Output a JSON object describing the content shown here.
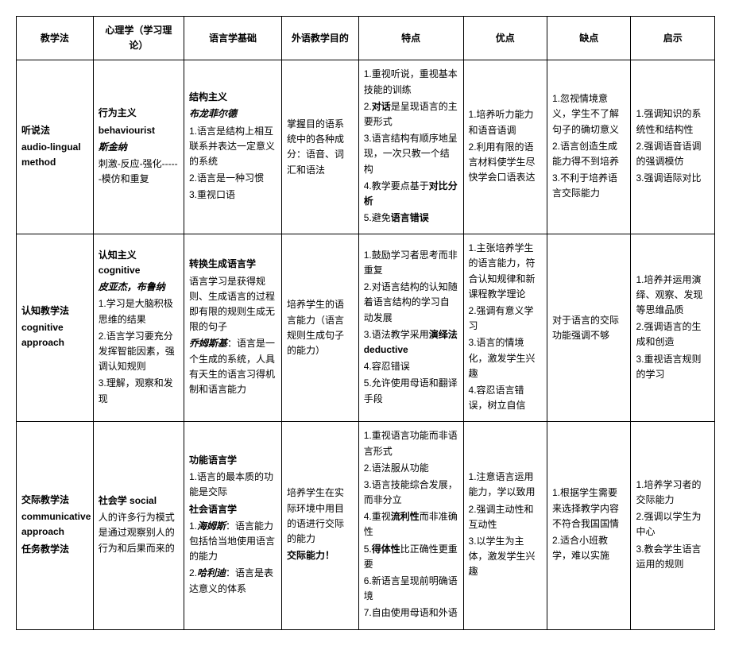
{
  "headers": {
    "c0": "教学法",
    "c1": "心理学（学习理论）",
    "c2": "语言学基础",
    "c3": "外语教学目的",
    "c4": "特点",
    "c5": "优点",
    "c6": "缺点",
    "c7": "启示"
  },
  "rows": [
    {
      "method_cn": "听说法",
      "method_en": "audio-lingual method",
      "psych": {
        "l1": "行为主义",
        "l2": "behaviourist",
        "l3": "斯金纳",
        "l4": "刺激-反应-强化------模仿和重复"
      },
      "ling": {
        "l1": "结构主义",
        "l2": "布龙菲尔德",
        "l3": "1.语言是结构上相互联系并表达一定意义的系统",
        "l4": "2.语言是一种习惯",
        "l5": "3.重视口语"
      },
      "goal": "掌握目的语系统中的各种成分：语音、词汇和语法",
      "feat": {
        "l1": "1.重视听说，重视基本技能的训练",
        "l2a": "2.",
        "l2b": "对话",
        "l2c": "是呈现语言的主要形式",
        "l3": "3.语言结构有顺序地呈现，一次只教一个结构",
        "l4a": "4.教学要点基于",
        "l4b": "对比分析",
        "l5a": "5.避免",
        "l5b": "语言错误"
      },
      "adv": {
        "l1": "1.培养听力能力和语音语调",
        "l2": "2.利用有限的语言材料使学生尽快学会口语表达"
      },
      "dis": {
        "l1": "1.忽视情境意义，学生不了解句子的确切意义",
        "l2": "2.语言创造生成能力得不到培养",
        "l3": "3.不利于培养语言交际能力"
      },
      "ins": {
        "l1": "1.强调知识的系统性和结构性",
        "l2": "2.强调语音语调的强调模仿",
        "l3": "3.强调语际对比"
      }
    },
    {
      "method_cn": "认知教学法",
      "method_en": "cognitive approach",
      "psych": {
        "l1a": "认知主义 cognitive",
        "l2": "皮亚杰，布鲁纳",
        "l3": "1.学习是大脑积极思维的结果",
        "l4": "2.语言学习要充分发挥智能因素，强调认知规则",
        "l5": "3.理解，观察和发现"
      },
      "ling": {
        "l1": "转换生成语言学",
        "l2": "语言学习是获得规则、生成语言的过程即有限的规则生成无限的句子",
        "l3a": "乔姆斯基",
        "l3b": "：语言是一个生成的系统，人具有天生的语言习得机制和语言能力"
      },
      "goal": "培养学生的语言能力（语言规则生成句子的能力）",
      "feat": {
        "l1": "1.鼓励学习者思考而非重复",
        "l2": "2.对语言结构的认知随着语言结构的学习自动发展",
        "l3a": "3.语法教学采用",
        "l3b": "演绎法deductive",
        "l4": "4.容忍错误",
        "l5": "5.允许使用母语和翻译手段"
      },
      "adv": {
        "l1": "1.主张培养学生的语言能力，符合认知规律和新课程教学理论",
        "l2": "2.强调有意义学习",
        "l3": "3.语言的情境化，激发学生兴趣",
        "l4": "4.容忍语言错误，树立自信"
      },
      "dis": "对于语言的交际功能强调不够",
      "ins": {
        "l1": "1.培养并运用演绎、观察、发现等思维品质",
        "l2": "2.强调语言的生成和创造",
        "l3": "3.重视语言规则的学习"
      }
    },
    {
      "method_cn": "交际教学法",
      "method_en1": "communicative approach",
      "method_en2": "任务教学法",
      "psych": {
        "l1": "社会学 social",
        "l2": "人的许多行为模式是通过观察别人的行为和后果而来的"
      },
      "ling": {
        "l1": "功能语言学",
        "l2": "1.语言的最本质的功能是交际",
        "l3": "社会语言学",
        "l4a": "1.",
        "l4b": "海姆斯",
        "l4c": "：语言能力包括恰当地使用语言的能力",
        "l5a": "2.",
        "l5b": "哈利迪",
        "l5c": "：语言是表达意义的体系"
      },
      "goal": {
        "l1": "培养学生在实际环境中用目的语进行交际的能力",
        "l2": "交际能力！"
      },
      "feat": {
        "l1": "1.重视语言功能而非语言形式",
        "l2": "2.语法服从功能",
        "l3": "3.语言技能综合发展，而非分立",
        "l4a": "4.重视",
        "l4b": "流利性",
        "l4c": "而非准确性",
        "l5a": "5.",
        "l5b": "得体性",
        "l5c": "比正确性更重要",
        "l6": "6.新语言呈现前明确语境",
        "l7": "7.自由使用母语和外语"
      },
      "adv": {
        "l1": "1.注意语言运用能力，学以致用",
        "l2": "2.强调主动性和互动性",
        "l3": "3.以学生为主体，激发学生兴趣"
      },
      "dis": {
        "l1": "1.根据学生需要来选择教学内容不符合我国国情",
        "l2": "2.适合小班教学，难以实施"
      },
      "ins": {
        "l1": "1.培养学习者的交际能力",
        "l2": "2.强调以学生为中心",
        "l3": "3.教会学生语言运用的规则"
      }
    }
  ]
}
